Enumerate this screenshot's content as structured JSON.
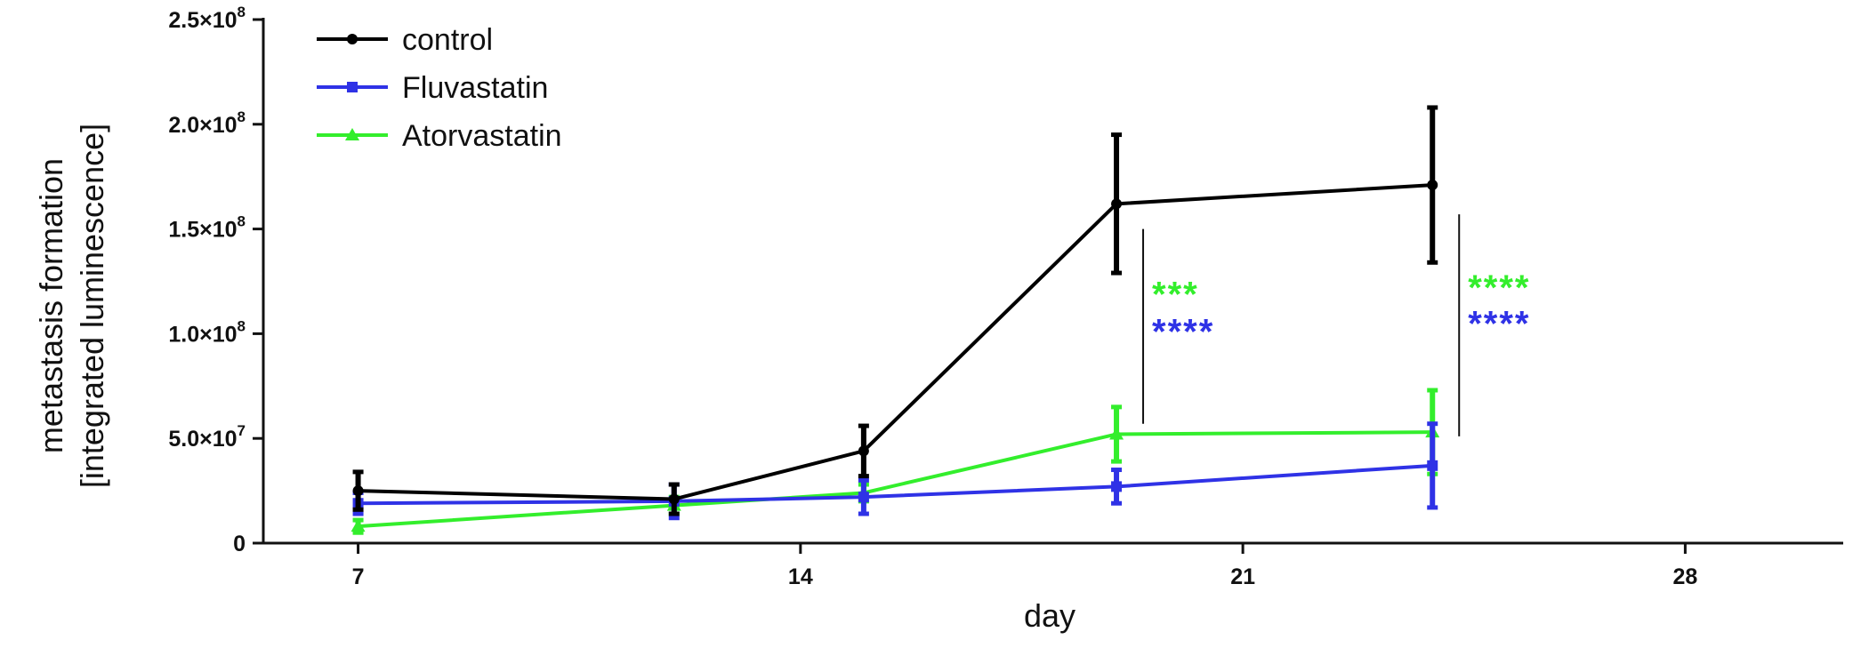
{
  "chart_data": {
    "type": "line",
    "xlabel": "day",
    "ylabel_line1": "metastasis formation",
    "ylabel_line2": "[integrated luminescence]",
    "xlim": [
      5.5,
      30.5
    ],
    "ylim": [
      0,
      250000000
    ],
    "x_ticks": [
      {
        "value": 7,
        "label": "7"
      },
      {
        "value": 14,
        "label": "14"
      },
      {
        "value": 21,
        "label": "21"
      },
      {
        "value": 28,
        "label": "28"
      }
    ],
    "y_ticks": [
      {
        "value": 0,
        "label": "0",
        "mantissa": "0",
        "exponent": ""
      },
      {
        "value": 50000000,
        "label": "5.0×10^7",
        "mantissa": "5.0×10",
        "exponent": "7"
      },
      {
        "value": 100000000,
        "label": "1.0×10^8",
        "mantissa": "1.0×10",
        "exponent": "8"
      },
      {
        "value": 150000000,
        "label": "1.5×10^8",
        "mantissa": "1.5×10",
        "exponent": "8"
      },
      {
        "value": 200000000,
        "label": "2.0×10^8",
        "mantissa": "2.0×10",
        "exponent": "8"
      },
      {
        "value": 250000000,
        "label": "2.5×10^8",
        "mantissa": "2.5×10",
        "exponent": "8"
      }
    ],
    "legend_position": "top-left",
    "grid": false,
    "series": [
      {
        "name": "control",
        "color": "#000000",
        "marker": "circle",
        "x": [
          7,
          12,
          15,
          19,
          24
        ],
        "y": [
          25000000,
          21000000,
          44000000,
          162000000,
          171000000
        ],
        "err": [
          9000000,
          7000000,
          12000000,
          33000000,
          37000000
        ]
      },
      {
        "name": "Fluvastatin",
        "color": "#2f32e6",
        "marker": "square",
        "x": [
          7,
          12,
          15,
          19,
          24
        ],
        "y": [
          19000000,
          20000000,
          22000000,
          27000000,
          37000000
        ],
        "err": [
          5000000,
          8000000,
          8000000,
          8000000,
          20000000
        ]
      },
      {
        "name": "Atorvastatin",
        "color": "#33ee2c",
        "marker": "triangle",
        "x": [
          7,
          12,
          15,
          19,
          24
        ],
        "y": [
          8000000,
          18000000,
          24000000,
          52000000,
          53000000
        ],
        "err": [
          3000000,
          4000000,
          4000000,
          13000000,
          20000000
        ]
      }
    ],
    "annotations": [
      {
        "day": 19,
        "bar_range": [
          57000000,
          150000000
        ],
        "lines": [
          {
            "text": "***",
            "color": "#33ee2c",
            "y": 120000000
          },
          {
            "text": "****",
            "color": "#2f32e6",
            "y": 102000000
          }
        ]
      },
      {
        "day": 24,
        "bar_range": [
          51000000,
          157000000
        ],
        "lines": [
          {
            "text": "****",
            "color": "#33ee2c",
            "y": 123000000
          },
          {
            "text": "****",
            "color": "#2f32e6",
            "y": 106000000
          }
        ]
      }
    ]
  }
}
